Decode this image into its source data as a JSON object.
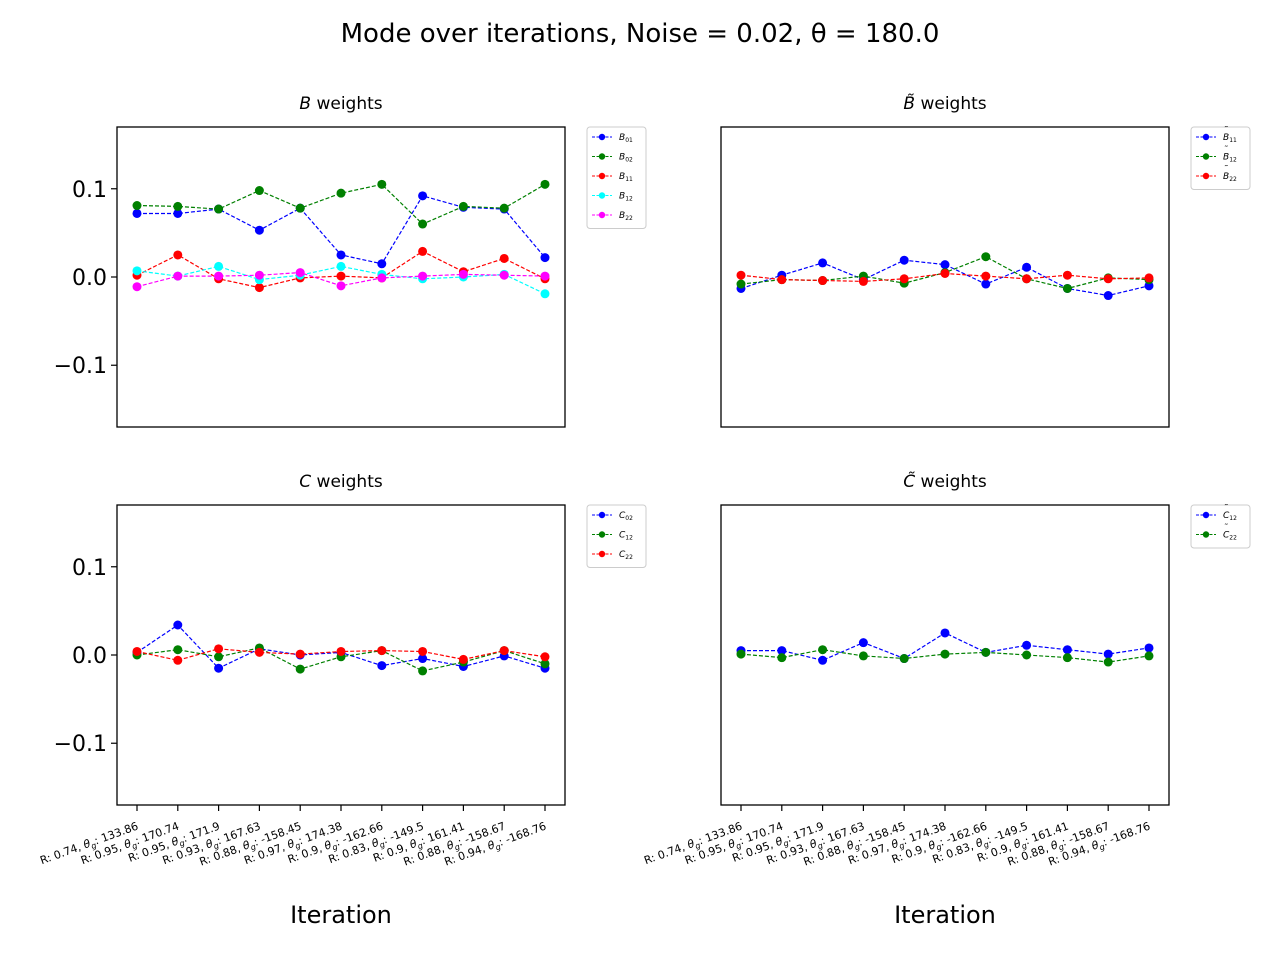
{
  "figure": {
    "title": "Mode over iterations, Noise = 0.02, θ = 180.0"
  },
  "chart_data": [
    {
      "type": "line",
      "title": "B weights",
      "title_var": "B",
      "title_rest": " weights",
      "xlabel": "",
      "ylabel": "",
      "ylim": [
        -0.17,
        0.17
      ],
      "yticks": [
        "0.1",
        "0.0",
        "−0.1"
      ],
      "show_yticks": true,
      "show_xticks": false,
      "grid": false,
      "legend_position": "outside-top-right",
      "series": [
        {
          "name": "B01",
          "legend_base": "B",
          "legend_sub": "01",
          "legend_tilde": false,
          "color": "#0000ff",
          "values": [
            0.072,
            0.072,
            0.077,
            0.053,
            0.078,
            0.025,
            0.015,
            0.092,
            0.079,
            0.077,
            0.022
          ]
        },
        {
          "name": "B02",
          "legend_base": "B",
          "legend_sub": "02",
          "legend_tilde": false,
          "color": "#008000",
          "values": [
            0.081,
            0.08,
            0.077,
            0.098,
            0.078,
            0.095,
            0.105,
            0.06,
            0.08,
            0.078,
            0.105
          ]
        },
        {
          "name": "B11",
          "legend_base": "B",
          "legend_sub": "11",
          "legend_tilde": false,
          "color": "#ff0000",
          "values": [
            0.002,
            0.025,
            -0.002,
            -0.012,
            -0.001,
            0.001,
            -0.001,
            0.029,
            0.006,
            0.021,
            -0.002
          ]
        },
        {
          "name": "B12",
          "legend_base": "B",
          "legend_sub": "12",
          "legend_tilde": false,
          "color": "#00ffff",
          "values": [
            0.007,
            0.001,
            0.012,
            -0.003,
            0.002,
            0.012,
            0.003,
            -0.002,
            0.0,
            0.003,
            -0.019
          ]
        },
        {
          "name": "B22",
          "legend_base": "B",
          "legend_sub": "22",
          "legend_tilde": false,
          "color": "#ff00ff",
          "values": [
            -0.011,
            0.001,
            0.001,
            0.002,
            0.005,
            -0.01,
            -0.001,
            0.001,
            0.003,
            0.002,
            0.001
          ]
        }
      ]
    },
    {
      "type": "line",
      "title": "B̃ weights",
      "title_var": "B̃",
      "title_rest": " weights",
      "xlabel": "",
      "ylabel": "",
      "ylim": [
        -0.17,
        0.17
      ],
      "yticks": [],
      "show_yticks": false,
      "show_xticks": false,
      "grid": false,
      "legend_position": "outside-top-right",
      "series": [
        {
          "name": "B̃11",
          "legend_base": "B",
          "legend_sub": "11",
          "legend_tilde": true,
          "color": "#0000ff",
          "values": [
            -0.013,
            0.002,
            0.016,
            -0.003,
            0.019,
            0.014,
            -0.008,
            0.011,
            -0.013,
            -0.021,
            -0.01
          ]
        },
        {
          "name": "B̃12",
          "legend_base": "B",
          "legend_sub": "12",
          "legend_tilde": true,
          "color": "#008000",
          "values": [
            -0.008,
            -0.003,
            -0.004,
            0.001,
            -0.007,
            0.005,
            0.023,
            -0.002,
            -0.013,
            -0.001,
            -0.003
          ]
        },
        {
          "name": "B̃22",
          "legend_base": "B",
          "legend_sub": "22",
          "legend_tilde": true,
          "color": "#ff0000",
          "values": [
            0.002,
            -0.003,
            -0.004,
            -0.005,
            -0.002,
            0.004,
            0.001,
            -0.002,
            0.002,
            -0.002,
            -0.001
          ]
        }
      ]
    },
    {
      "type": "line",
      "title": "C weights",
      "title_var": "C",
      "title_rest": " weights",
      "xlabel": "Iteration",
      "ylabel": "",
      "ylim": [
        -0.17,
        0.17
      ],
      "yticks": [
        "0.1",
        "0.0",
        "−0.1"
      ],
      "show_yticks": true,
      "show_xticks": true,
      "grid": false,
      "legend_position": "outside-top-right",
      "categories": [
        "R: 0.74, θg: 133.86",
        "R: 0.95, θg: 170.74",
        "R: 0.95, θg: 171.9",
        "R: 0.93, θg: 167.63",
        "R: 0.88, θg: -158.45",
        "R: 0.97, θg: 174.38",
        "R: 0.9, θg: -162.66",
        "R: 0.83, θg: -149.5",
        "R: 0.9, θg: 161.41",
        "R: 0.88, θg: -158.67",
        "R: 0.94, θg: -168.76"
      ],
      "series": [
        {
          "name": "C02",
          "legend_base": "C",
          "legend_sub": "02",
          "legend_tilde": false,
          "color": "#0000ff",
          "values": [
            0.003,
            0.034,
            -0.015,
            0.007,
            0.0,
            0.003,
            -0.012,
            -0.004,
            -0.013,
            -0.001,
            -0.015
          ]
        },
        {
          "name": "C12",
          "legend_base": "C",
          "legend_sub": "12",
          "legend_tilde": false,
          "color": "#008000",
          "values": [
            0.0,
            0.006,
            -0.002,
            0.008,
            -0.016,
            -0.002,
            0.005,
            -0.018,
            -0.008,
            0.005,
            -0.01
          ]
        },
        {
          "name": "C22",
          "legend_base": "C",
          "legend_sub": "22",
          "legend_tilde": false,
          "color": "#ff0000",
          "values": [
            0.004,
            -0.006,
            0.007,
            0.003,
            0.001,
            0.004,
            0.005,
            0.004,
            -0.005,
            0.005,
            -0.002
          ]
        }
      ]
    },
    {
      "type": "line",
      "title": "C̃ weights",
      "title_var": "C̃",
      "title_rest": " weights",
      "xlabel": "Iteration",
      "ylabel": "",
      "ylim": [
        -0.17,
        0.17
      ],
      "yticks": [],
      "show_yticks": false,
      "show_xticks": true,
      "grid": false,
      "legend_position": "outside-top-right",
      "categories": [
        "R: 0.74, θg: 133.86",
        "R: 0.95, θg: 170.74",
        "R: 0.95, θg: 171.9",
        "R: 0.93, θg: 167.63",
        "R: 0.88, θg: -158.45",
        "R: 0.97, θg: 174.38",
        "R: 0.9, θg: -162.66",
        "R: 0.83, θg: -149.5",
        "R: 0.9, θg: 161.41",
        "R: 0.88, θg: -158.67",
        "R: 0.94, θg: -168.76"
      ],
      "series": [
        {
          "name": "C̃12",
          "legend_base": "C",
          "legend_sub": "12",
          "legend_tilde": true,
          "color": "#0000ff",
          "values": [
            0.005,
            0.005,
            -0.006,
            0.014,
            -0.004,
            0.025,
            0.003,
            0.011,
            0.006,
            0.001,
            0.008
          ]
        },
        {
          "name": "C̃22",
          "legend_base": "C",
          "legend_sub": "22",
          "legend_tilde": true,
          "color": "#008000",
          "values": [
            0.001,
            -0.003,
            0.006,
            -0.001,
            -0.004,
            0.001,
            0.003,
            0.0,
            -0.003,
            -0.008,
            -0.001
          ]
        }
      ]
    }
  ]
}
